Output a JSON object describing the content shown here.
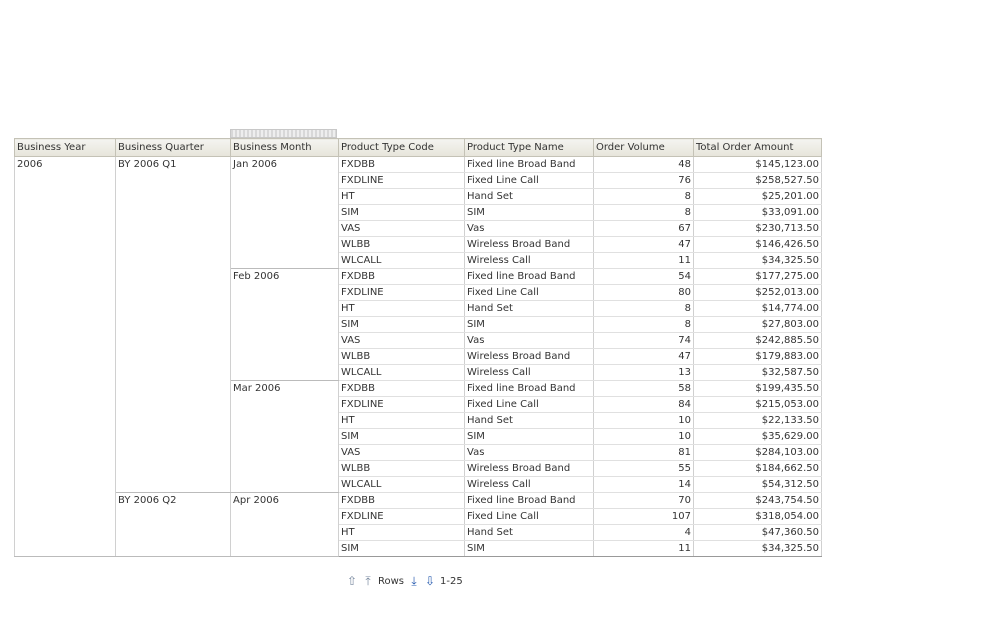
{
  "columns": [
    "Business Year",
    "Business Quarter",
    "Business Month",
    "Product Type Code",
    "Product Type Name",
    "Order Volume",
    "Total Order Amount"
  ],
  "year": "2006",
  "quarters": [
    {
      "label": "BY 2006 Q1",
      "months": [
        {
          "label": "Jan 2006",
          "rows": [
            [
              "FXDBB",
              "Fixed line Broad Band",
              "48",
              "$145,123.00"
            ],
            [
              "FXDLINE",
              "Fixed Line Call",
              "76",
              "$258,527.50"
            ],
            [
              "HT",
              "Hand Set",
              "8",
              "$25,201.00"
            ],
            [
              "SIM",
              "SIM",
              "8",
              "$33,091.00"
            ],
            [
              "VAS",
              "Vas",
              "67",
              "$230,713.50"
            ],
            [
              "WLBB",
              "Wireless Broad Band",
              "47",
              "$146,426.50"
            ],
            [
              "WLCALL",
              "Wireless Call",
              "11",
              "$34,325.50"
            ]
          ]
        },
        {
          "label": "Feb 2006",
          "rows": [
            [
              "FXDBB",
              "Fixed line Broad Band",
              "54",
              "$177,275.00"
            ],
            [
              "FXDLINE",
              "Fixed Line Call",
              "80",
              "$252,013.00"
            ],
            [
              "HT",
              "Hand Set",
              "8",
              "$14,774.00"
            ],
            [
              "SIM",
              "SIM",
              "8",
              "$27,803.00"
            ],
            [
              "VAS",
              "Vas",
              "74",
              "$242,885.50"
            ],
            [
              "WLBB",
              "Wireless Broad Band",
              "47",
              "$179,883.00"
            ],
            [
              "WLCALL",
              "Wireless Call",
              "13",
              "$32,587.50"
            ]
          ]
        },
        {
          "label": "Mar 2006",
          "rows": [
            [
              "FXDBB",
              "Fixed line Broad Band",
              "58",
              "$199,435.50"
            ],
            [
              "FXDLINE",
              "Fixed Line Call",
              "84",
              "$215,053.00"
            ],
            [
              "HT",
              "Hand Set",
              "10",
              "$22,133.50"
            ],
            [
              "SIM",
              "SIM",
              "10",
              "$35,629.00"
            ],
            [
              "VAS",
              "Vas",
              "81",
              "$284,103.00"
            ],
            [
              "WLBB",
              "Wireless Broad Band",
              "55",
              "$184,662.50"
            ],
            [
              "WLCALL",
              "Wireless Call",
              "14",
              "$54,312.50"
            ]
          ]
        }
      ]
    },
    {
      "label": "BY 2006 Q2",
      "months": [
        {
          "label": "Apr 2006",
          "rows": [
            [
              "FXDBB",
              "Fixed line Broad Band",
              "70",
              "$243,754.50"
            ],
            [
              "FXDLINE",
              "Fixed Line Call",
              "107",
              "$318,054.00"
            ],
            [
              "HT",
              "Hand Set",
              "4",
              "$47,360.50"
            ],
            [
              "SIM",
              "SIM",
              "11",
              "$34,325.50"
            ]
          ]
        }
      ]
    }
  ],
  "pager": {
    "rows_label": "Rows",
    "range": "1-25"
  }
}
